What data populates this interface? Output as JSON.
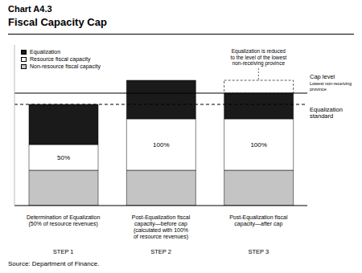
{
  "chart_data": {
    "type": "bar",
    "title": "Chart A4.3",
    "subtitle": "Fiscal Capacity Cap",
    "categories": [
      "Determination of Equalization\n(50% of resource revenues)",
      "Post-Equalization fiscal\ncapacity—before cap\n(calculated with 100%\nof resource revenues)",
      "Post-Equalization fiscal\ncapacity—after cap"
    ],
    "step_labels": [
      "STEP 1",
      "STEP 2",
      "STEP 3"
    ],
    "stacked": true,
    "series": [
      {
        "name": "Non-resource fiscal capacity",
        "color": "#c4c4c4",
        "values": [
          22,
          22,
          22
        ]
      },
      {
        "name": "Resource fiscal capacity",
        "color": "#ffffff",
        "values": [
          16,
          32,
          32
        ],
        "inner_labels": [
          "50%",
          "100%",
          "100%"
        ]
      },
      {
        "name": "Equalization",
        "color": "#1a1a1a",
        "values": [
          25,
          24,
          16
        ]
      }
    ],
    "reference_lines": [
      {
        "label": "Cap level",
        "sublabel": "Lowest non-receiving\nprovince",
        "value": 70,
        "line_style": "solid"
      },
      {
        "label": "Equalization\nstandard",
        "value": 63,
        "line_style": "dashed"
      }
    ],
    "annotation": "Equalization is reduced\nto the level of the lowest\nnon-receiving province",
    "ylim": [
      0,
      100
    ],
    "tick_labels": "x",
    "legend": "upper left",
    "source": "Source: Department of Finance."
  }
}
